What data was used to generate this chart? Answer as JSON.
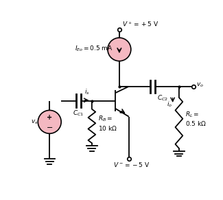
{
  "bg_color": "#ffffff",
  "pink_color": "#f4b8c1",
  "line_color": "#000000",
  "figsize": [
    3.25,
    2.91
  ],
  "dpi": 100,
  "vplus_label": "$V^+= +5$ V",
  "vminus_label": "$V^-=-5$ V",
  "ieo_label": "$I_{Eo} = 0.5$ mA",
  "cc1_label": "$C_{C1}$",
  "cc2_label": "$C_{C2}$",
  "rb_label": "$R_B =$\n10 k$\\Omega$",
  "rl_label": "$R_L =$\n0.5 k$\\Omega$",
  "vs_label": "$v_s$",
  "is_label": "$i_s$",
  "io_label": "$i_o$",
  "vo_label": "$v_o$"
}
